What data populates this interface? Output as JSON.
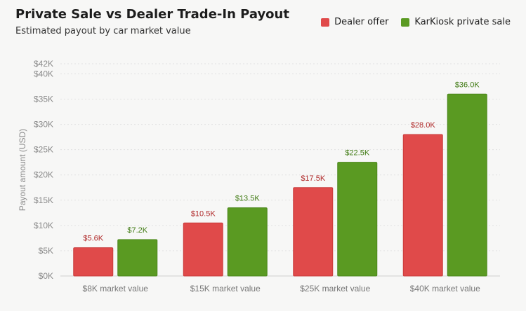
{
  "chart_data": {
    "type": "bar",
    "title": "Private Sale vs Dealer Trade-In Payout",
    "subtitle": "Estimated payout by car market value",
    "ylabel": "Payout amount (USD)",
    "xlabel": "",
    "ylim": [
      0,
      42000
    ],
    "yticks": [
      0,
      5000,
      10000,
      15000,
      20000,
      25000,
      30000,
      35000,
      40000,
      42000
    ],
    "ytick_labels": [
      "$0K",
      "$5K",
      "$10K",
      "$15K",
      "$20K",
      "$25K",
      "$30K",
      "$35K",
      "$40K",
      "$42K"
    ],
    "categories": [
      "$8K market value",
      "$15K market value",
      "$25K market value",
      "$40K market value"
    ],
    "series": [
      {
        "name": "Dealer offer",
        "color": "#e04a4a",
        "label_color": "#b02a2a",
        "values": [
          5600,
          10500,
          17500,
          28000
        ],
        "labels": [
          "$5.6K",
          "$10.5K",
          "$17.5K",
          "$28.0K"
        ]
      },
      {
        "name": "KarKiosk private sale",
        "color": "#5a9a22",
        "label_color": "#3f7a12",
        "values": [
          7200,
          13500,
          22500,
          36000
        ],
        "labels": [
          "$7.2K",
          "$13.5K",
          "$22.5K",
          "$36.0K"
        ]
      }
    ],
    "grid": true,
    "legend_position": "top-right"
  }
}
